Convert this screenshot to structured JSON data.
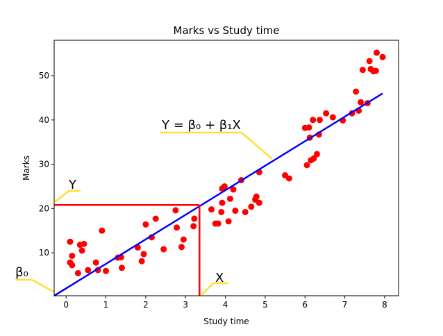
{
  "chart_data": {
    "type": "scatter",
    "title": "Marks vs Study time",
    "xlabel": "Study time",
    "ylabel": "Marks",
    "xlim": [
      -0.3,
      8.35
    ],
    "ylim": [
      0.3,
      58.0
    ],
    "xticks": [
      0,
      1,
      2,
      3,
      4,
      5,
      6,
      7,
      8
    ],
    "yticks": [
      10,
      20,
      30,
      40,
      50
    ],
    "grid": false,
    "colors": {
      "points": "#ff0000",
      "regression": "#0000ff",
      "guide": "#ff0000",
      "callout": "#ffd700",
      "axes": "#000000"
    },
    "points": [
      [
        0.1,
        7.8
      ],
      [
        0.15,
        7.2
      ],
      [
        0.1,
        12.5
      ],
      [
        0.15,
        9.3
      ],
      [
        0.3,
        5.4
      ],
      [
        0.35,
        11.8
      ],
      [
        0.4,
        10.5
      ],
      [
        0.45,
        12.0
      ],
      [
        0.55,
        6.1
      ],
      [
        0.75,
        7.8
      ],
      [
        0.8,
        6.1
      ],
      [
        0.9,
        15.0
      ],
      [
        1.0,
        5.9
      ],
      [
        1.3,
        8.9
      ],
      [
        1.38,
        9.0
      ],
      [
        1.4,
        6.6
      ],
      [
        1.8,
        11.2
      ],
      [
        1.9,
        8.1
      ],
      [
        1.95,
        9.7
      ],
      [
        2.0,
        16.4
      ],
      [
        2.15,
        13.5
      ],
      [
        2.25,
        17.7
      ],
      [
        2.45,
        10.8
      ],
      [
        2.75,
        19.6
      ],
      [
        2.78,
        15.7
      ],
      [
        2.9,
        11.3
      ],
      [
        2.95,
        13.0
      ],
      [
        3.2,
        16.0
      ],
      [
        3.22,
        17.7
      ],
      [
        3.65,
        19.8
      ],
      [
        3.75,
        16.6
      ],
      [
        3.82,
        16.6
      ],
      [
        3.9,
        19.2
      ],
      [
        3.92,
        21.3
      ],
      [
        3.92,
        24.5
      ],
      [
        3.98,
        25.0
      ],
      [
        4.08,
        17.1
      ],
      [
        4.12,
        22.2
      ],
      [
        4.2,
        24.3
      ],
      [
        4.25,
        19.5
      ],
      [
        4.4,
        26.4
      ],
      [
        4.5,
        19.2
      ],
      [
        4.65,
        20.4
      ],
      [
        4.75,
        22.0
      ],
      [
        4.78,
        22.7
      ],
      [
        4.85,
        21.3
      ],
      [
        4.85,
        28.2
      ],
      [
        5.5,
        27.5
      ],
      [
        5.6,
        26.8
      ],
      [
        6.0,
        38.2
      ],
      [
        6.05,
        29.8
      ],
      [
        6.1,
        38.3
      ],
      [
        6.12,
        36.0
      ],
      [
        6.15,
        30.9
      ],
      [
        6.2,
        40.0
      ],
      [
        6.22,
        31.3
      ],
      [
        6.3,
        32.3
      ],
      [
        6.35,
        36.7
      ],
      [
        6.37,
        40.0
      ],
      [
        6.53,
        41.5
      ],
      [
        6.7,
        40.6
      ],
      [
        6.95,
        39.9
      ],
      [
        7.18,
        41.5
      ],
      [
        7.28,
        46.4
      ],
      [
        7.35,
        42.1
      ],
      [
        7.4,
        44.0
      ],
      [
        7.45,
        51.3
      ],
      [
        7.57,
        43.8
      ],
      [
        7.62,
        53.3
      ],
      [
        7.65,
        51.5
      ],
      [
        7.72,
        51.0
      ],
      [
        7.78,
        51.1
      ],
      [
        7.8,
        55.2
      ],
      [
        7.95,
        54.2
      ]
    ],
    "regression": {
      "x": [
        -0.3,
        7.95
      ],
      "y": [
        0.3,
        46.0
      ]
    },
    "guide_point": [
      3.35,
      20.8
    ],
    "annotations": {
      "equation": "Y = β₀ + β₁X",
      "y_label": "Y",
      "x_label": "X",
      "intercept_label": "β₀"
    }
  }
}
